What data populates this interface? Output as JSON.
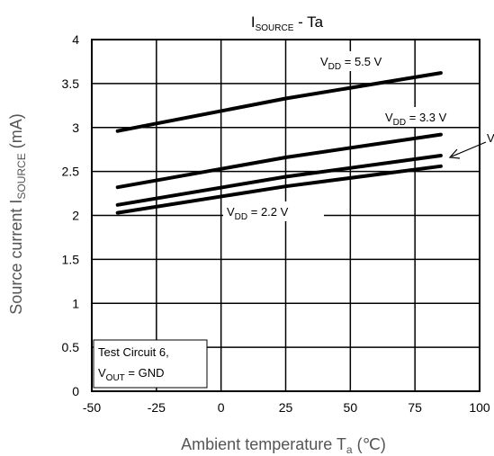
{
  "chart_data": {
    "type": "line",
    "title": {
      "main": "I",
      "sub": "SOURCE",
      "rest": " - Ta"
    },
    "xlabel": {
      "main": "Ambient temperature  T",
      "sub": "a",
      "rest": "  (℃)"
    },
    "ylabel": {
      "main": "Source current  I",
      "sub": "SOURCE",
      "rest": "  (mA)"
    },
    "xlim": [
      -50,
      100
    ],
    "ylim": [
      0,
      4
    ],
    "xticks": [
      "-50",
      "-25",
      "0",
      "25",
      "50",
      "75",
      "100"
    ],
    "yticks": [
      "0",
      "0.5",
      "1",
      "1.5",
      "2",
      "2.5",
      "3",
      "3.5",
      "4"
    ],
    "grid": true,
    "series": [
      {
        "name": "VDD = 5.5 V",
        "x": [
          -40,
          25,
          85
        ],
        "y": [
          2.96,
          3.33,
          3.62
        ]
      },
      {
        "name": "VDD = 3.3 V",
        "x": [
          -40,
          25,
          85
        ],
        "y": [
          2.32,
          2.66,
          2.92
        ]
      },
      {
        "name": "",
        "x": [
          -40,
          25,
          85
        ],
        "y": [
          2.12,
          2.44,
          2.68
        ]
      },
      {
        "name": "VDD = 2.2 V",
        "x": [
          -40,
          25,
          85
        ],
        "y": [
          2.03,
          2.33,
          2.56
        ]
      }
    ],
    "annotations": {
      "vdd55": {
        "main": "V",
        "sub": "DD",
        "rest": " = 5.5 V"
      },
      "vdd33": {
        "main": "V",
        "sub": "DD",
        "rest": " = 3.3 V"
      },
      "vdd22": {
        "main": "V",
        "sub": "DD",
        "rest": " = 2.2 V"
      },
      "cut_label": "V",
      "test_box_line1": "Test Circuit 6,",
      "test_box_line2": {
        "main": "V",
        "sub": "OUT",
        "rest": "  = GND"
      }
    }
  }
}
